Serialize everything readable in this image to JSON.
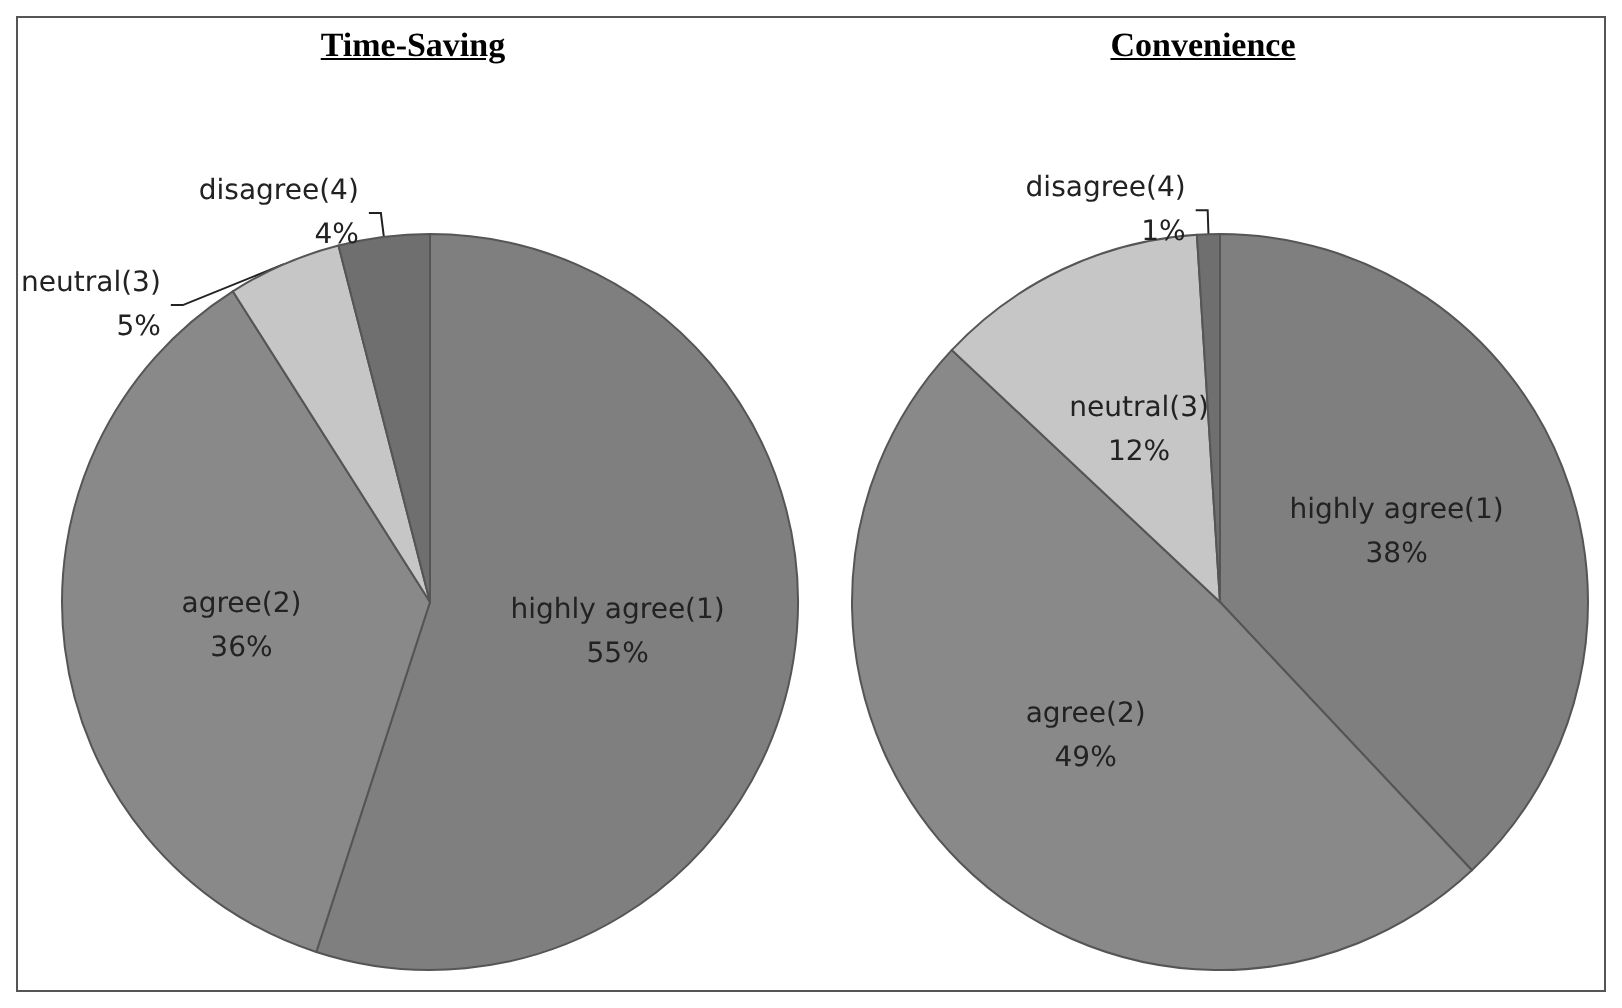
{
  "chart_data": [
    {
      "type": "pie",
      "title": "Time-Saving",
      "categories": [
        "highly agree(1)",
        "agree(2)",
        "neutral(3)",
        "disagree(4)"
      ],
      "values": [
        55,
        36,
        5,
        4
      ],
      "value_labels": [
        "55%",
        "36%",
        "5%",
        "4%"
      ],
      "colors": [
        "#7f7f7f",
        "#898989",
        "#c6c6c6",
        "#6f6f6f"
      ]
    },
    {
      "type": "pie",
      "title": "Convenience",
      "categories": [
        "highly agree(1)",
        "agree(2)",
        "neutral(3)",
        "disagree(4)"
      ],
      "values": [
        38,
        49,
        12,
        1
      ],
      "value_labels": [
        "38%",
        "49%",
        "12%",
        "1%"
      ],
      "colors": [
        "#7f7f7f",
        "#898989",
        "#c6c6c6",
        "#6f6f6f"
      ]
    }
  ]
}
